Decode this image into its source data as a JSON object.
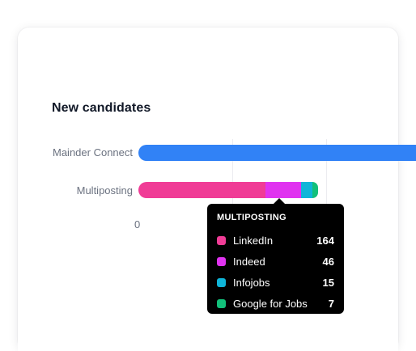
{
  "card": {
    "title": "New candidates"
  },
  "chart_data": {
    "type": "bar",
    "orientation": "horizontal",
    "stacked": true,
    "title": "New candidates",
    "categories": [
      "Mainder Connect",
      "Multiposting"
    ],
    "x_tick_labels": [
      "0"
    ],
    "grid": true,
    "bars": [
      {
        "category": "Mainder Connect",
        "segments": [
          {
            "name": "",
            "value": null,
            "color": "#3182f6"
          }
        ]
      },
      {
        "category": "Multiposting",
        "segments": [
          {
            "name": "LinkedIn",
            "value": 164,
            "color": "#f03c96"
          },
          {
            "name": "Indeed",
            "value": 46,
            "color": "#e033f0"
          },
          {
            "name": "Infojobs",
            "value": 15,
            "color": "#0fb5d8"
          },
          {
            "name": "Google for Jobs",
            "value": 7,
            "color": "#12c07a"
          }
        ]
      }
    ]
  },
  "tooltip": {
    "title": "MULTIPOSTING",
    "items": [
      {
        "label": "LinkedIn",
        "value": "164",
        "color": "#f03c96"
      },
      {
        "label": "Indeed",
        "value": "46",
        "color": "#e033f0"
      },
      {
        "label": "Infojobs",
        "value": "15",
        "color": "#0fb5d8"
      },
      {
        "label": "Google for Jobs",
        "value": "7",
        "color": "#12c07a"
      }
    ]
  }
}
